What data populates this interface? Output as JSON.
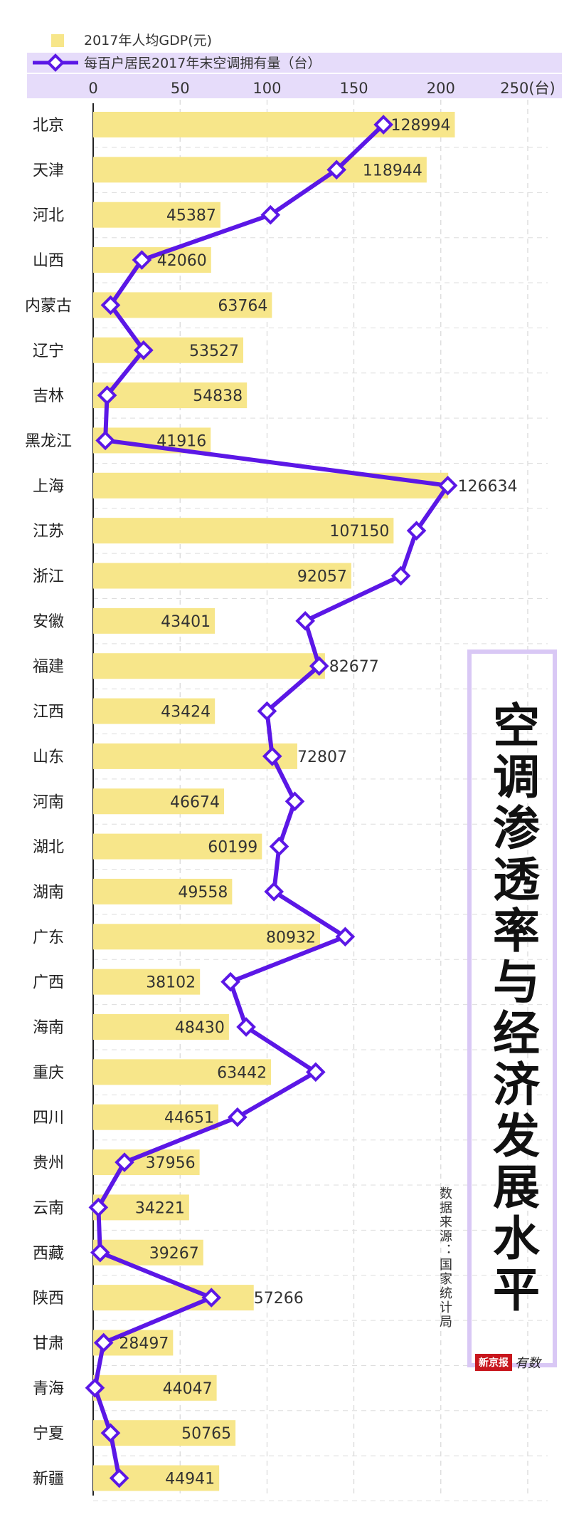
{
  "chart_data": {
    "type": "bar",
    "categories": [
      "北京",
      "天津",
      "河北",
      "山西",
      "内蒙古",
      "辽宁",
      "吉林",
      "黑龙江",
      "上海",
      "江苏",
      "浙江",
      "安徽",
      "福建",
      "江西",
      "山东",
      "河南",
      "湖北",
      "湖南",
      "广东",
      "广西",
      "海南",
      "重庆",
      "四川",
      "贵州",
      "云南",
      "西藏",
      "陕西",
      "甘肃",
      "青海",
      "宁夏",
      "新疆"
    ],
    "series": [
      {
        "name": "2017年人均GDP(元)",
        "type": "bar",
        "color": "#f7e68a",
        "values": [
          128994,
          118944,
          45387,
          42060,
          63764,
          53527,
          54838,
          41916,
          126634,
          107150,
          92057,
          43401,
          82677,
          43424,
          72807,
          46674,
          60199,
          49558,
          80932,
          38102,
          48430,
          63442,
          44651,
          37956,
          34221,
          39267,
          57266,
          28497,
          44047,
          50765,
          44941
        ]
      },
      {
        "name": "每百户居民2017年末空调拥有量（台）",
        "type": "line",
        "color": "#5b17e6",
        "values": [
          167,
          140,
          102,
          28,
          10,
          29,
          8,
          7,
          204,
          186,
          177,
          122,
          130,
          100,
          103,
          116,
          107,
          104,
          145,
          79,
          88,
          128,
          83,
          18,
          3,
          4,
          68,
          6,
          1,
          10,
          15
        ]
      }
    ],
    "x_axis": {
      "ticks": [
        "0",
        "50",
        "100",
        "150",
        "200"
      ],
      "unit_tick": "250(台)",
      "range": [
        0,
        250
      ]
    },
    "bar_scale_max": 155000,
    "grid": true,
    "legend_position": "top"
  },
  "title": "空调渗透率与经济发展水平",
  "source": "数据来源：国家统计局",
  "brand": {
    "name": "新京报",
    "script": "有数"
  }
}
